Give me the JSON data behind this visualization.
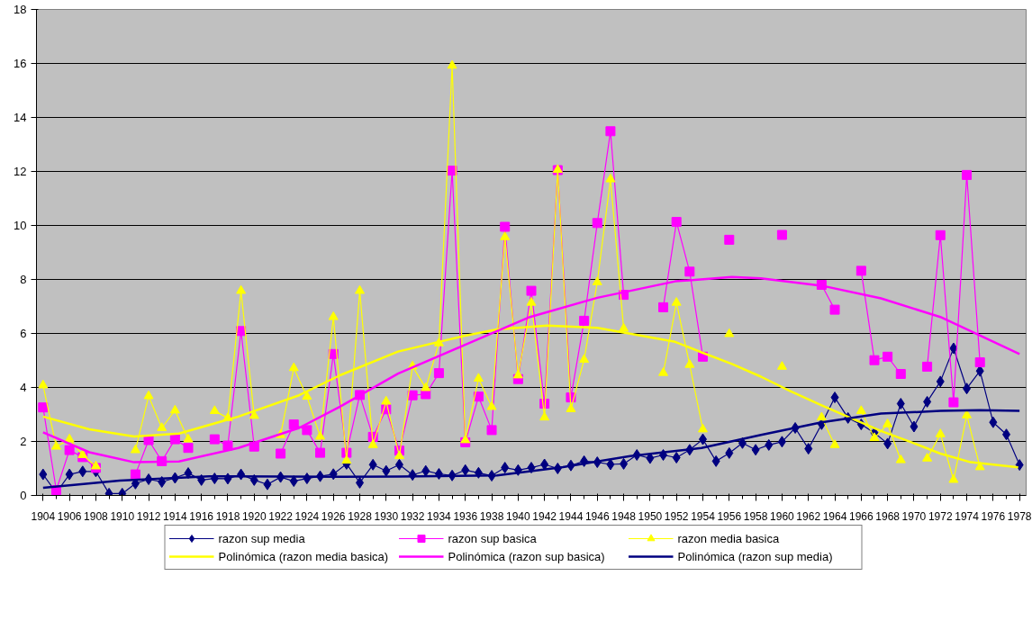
{
  "chart_data": {
    "type": "line",
    "x": [
      1904,
      1905,
      1906,
      1907,
      1908,
      1909,
      1910,
      1911,
      1912,
      1913,
      1914,
      1915,
      1916,
      1917,
      1918,
      1919,
      1920,
      1921,
      1922,
      1923,
      1924,
      1925,
      1926,
      1927,
      1928,
      1929,
      1930,
      1931,
      1932,
      1933,
      1934,
      1935,
      1936,
      1937,
      1938,
      1939,
      1940,
      1941,
      1942,
      1943,
      1944,
      1945,
      1946,
      1947,
      1948,
      1949,
      1950,
      1951,
      1952,
      1953,
      1954,
      1955,
      1956,
      1957,
      1958,
      1959,
      1960,
      1961,
      1962,
      1963,
      1964,
      1965,
      1966,
      1967,
      1968,
      1969,
      1970,
      1971,
      1972,
      1973,
      1974,
      1975,
      1976,
      1977,
      1978
    ],
    "xlim": [
      1903.5,
      1978.5
    ],
    "xticks": [
      1904,
      1906,
      1908,
      1910,
      1912,
      1914,
      1916,
      1918,
      1920,
      1922,
      1924,
      1926,
      1928,
      1930,
      1932,
      1934,
      1936,
      1938,
      1940,
      1942,
      1944,
      1946,
      1948,
      1950,
      1952,
      1954,
      1956,
      1958,
      1960,
      1962,
      1964,
      1966,
      1968,
      1970,
      1972,
      1974,
      1976,
      1978
    ],
    "ylim": [
      0,
      18
    ],
    "yticks": [
      0,
      2,
      4,
      6,
      8,
      10,
      12,
      14,
      16,
      18
    ],
    "grid": "y",
    "legend": "bottom",
    "line_style": "solid",
    "series": [
      {
        "name": "razon sup media",
        "color": "#000080",
        "marker": "diamond",
        "values": [
          0.78,
          0.1,
          0.78,
          0.89,
          0.89,
          0.07,
          0.07,
          0.44,
          0.6,
          0.5,
          0.65,
          0.83,
          0.57,
          0.63,
          0.62,
          0.78,
          0.57,
          0.41,
          0.68,
          0.53,
          0.63,
          0.71,
          0.79,
          1.17,
          0.47,
          1.14,
          0.91,
          1.14,
          0.76,
          0.91,
          0.8,
          0.74,
          0.94,
          0.84,
          0.73,
          1.03,
          0.94,
          1.03,
          1.15,
          1.0,
          1.11,
          1.27,
          1.23,
          1.15,
          1.17,
          1.5,
          1.38,
          1.5,
          1.4,
          1.69,
          2.08,
          1.27,
          1.57,
          1.94,
          1.69,
          1.87,
          1.99,
          2.5,
          1.73,
          2.64,
          3.63,
          2.87,
          2.63,
          2.32,
          1.92,
          3.4,
          2.55,
          3.47,
          4.22,
          5.45,
          3.96,
          4.61,
          2.71,
          2.26,
          1.13
        ]
      },
      {
        "name": "razon sup basica",
        "color": "#ff00ff",
        "marker": "square",
        "values": [
          3.26,
          0.2,
          1.68,
          1.42,
          1.02,
          null,
          null,
          0.78,
          2.05,
          1.27,
          2.08,
          1.76,
          null,
          2.08,
          1.85,
          6.09,
          1.81,
          null,
          1.55,
          2.63,
          2.42,
          1.58,
          5.24,
          1.58,
          3.72,
          2.17,
          3.19,
          1.66,
          3.71,
          3.75,
          4.53,
          12.03,
          1.97,
          3.66,
          2.42,
          9.95,
          4.31,
          7.58,
          3.4,
          12.05,
          3.63,
          6.47,
          10.09,
          13.49,
          7.43,
          null,
          null,
          6.97,
          10.13,
          8.29,
          5.14,
          null,
          9.47,
          null,
          null,
          null,
          9.65,
          null,
          null,
          7.8,
          6.88,
          null,
          8.32,
          5.01,
          5.14,
          4.5,
          null,
          4.77,
          9.64,
          3.45,
          11.87,
          4.93,
          null,
          null,
          null
        ]
      },
      {
        "name": "razon media basica",
        "color": "#ffff00",
        "marker": "triangle",
        "values": [
          4.08,
          1.81,
          2.08,
          1.5,
          1.08,
          null,
          null,
          1.68,
          3.68,
          2.5,
          3.15,
          2.08,
          null,
          3.13,
          2.87,
          7.58,
          2.95,
          null,
          2.24,
          4.72,
          3.66,
          2.18,
          6.61,
          1.29,
          7.58,
          1.87,
          3.48,
          1.46,
          4.78,
          3.98,
          5.64,
          15.92,
          2.05,
          4.33,
          3.28,
          9.57,
          4.45,
          7.14,
          2.89,
          12.06,
          3.2,
          5.03,
          7.9,
          11.71,
          6.18,
          null,
          null,
          4.54,
          7.14,
          4.84,
          2.45,
          null,
          5.98,
          null,
          null,
          null,
          4.77,
          null,
          null,
          2.89,
          1.87,
          null,
          3.13,
          2.13,
          2.64,
          1.31,
          null,
          1.37,
          2.27,
          0.58,
          2.97,
          1.05,
          null,
          null,
          null
        ]
      },
      {
        "name": "Polinómica (razon media basica)",
        "color": "#ffff00",
        "marker": "none",
        "x": [
          1904,
          1907.5,
          1910.9,
          1914.3,
          1918.8,
          1923.4,
          1926.5,
          1930.9,
          1935.9,
          1938.4,
          1942.2,
          1946,
          1951.9,
          1953.9,
          1956.2,
          1958.4,
          1960.6,
          1963,
          1965.2,
          1967.5,
          1969.8,
          1972,
          1974.3,
          1977.9
        ],
        "values": [
          2.92,
          2.45,
          2.18,
          2.29,
          2.92,
          3.71,
          4.45,
          5.33,
          5.91,
          6.15,
          6.29,
          6.21,
          5.69,
          5.3,
          4.87,
          4.4,
          3.87,
          3.34,
          2.87,
          2.39,
          1.97,
          1.55,
          1.23,
          1.04
        ]
      },
      {
        "name": "Polinómica (razon sup basica)",
        "color": "#ff00ff",
        "marker": "none",
        "x": [
          1904,
          1907.5,
          1910.9,
          1914.3,
          1918.8,
          1923.4,
          1926.5,
          1930.9,
          1935.9,
          1940.9,
          1946,
          1951.9,
          1956.2,
          1958.4,
          1963,
          1967.5,
          1972,
          1978
        ],
        "values": [
          2.34,
          1.6,
          1.23,
          1.26,
          1.76,
          2.5,
          3.29,
          4.51,
          5.56,
          6.61,
          7.32,
          7.93,
          8.09,
          8.04,
          7.77,
          7.3,
          6.61,
          5.24
        ]
      },
      {
        "name": "Polinómica (razon sup media)",
        "color": "#000080",
        "marker": "none",
        "x": [
          1904,
          1909.8,
          1916.6,
          1926.5,
          1930.9,
          1938.4,
          1943.4,
          1948.5,
          1953.9,
          1958.4,
          1963,
          1967.5,
          1972,
          1975,
          1978
        ],
        "values": [
          0.28,
          0.55,
          0.71,
          0.69,
          0.7,
          0.74,
          1.05,
          1.46,
          1.76,
          2.24,
          2.71,
          3.03,
          3.13,
          3.16,
          3.13
        ]
      }
    ]
  }
}
